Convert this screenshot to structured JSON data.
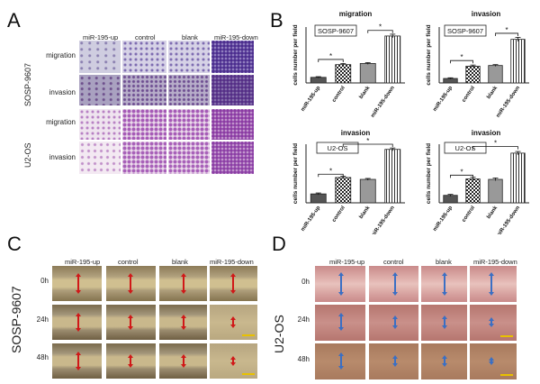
{
  "panels": {
    "a": "A",
    "b": "B",
    "c": "C",
    "d": "D"
  },
  "panel_a": {
    "columns": [
      "miR-195-up",
      "control",
      "blank",
      "miR-195-down"
    ],
    "rows": [
      "migration",
      "invasion",
      "migration",
      "invasion"
    ],
    "cell_lines": [
      "SOSP-9607",
      "U2-OS"
    ]
  },
  "panel_b": {
    "ylabel": "cells number per field",
    "categories": [
      "miR-195-up",
      "control",
      "blank",
      "miR-195-down"
    ],
    "significance": "*"
  },
  "panel_c": {
    "columns": [
      "miR-195-up",
      "control",
      "blank",
      "miR-195-down"
    ],
    "rows": [
      "0h",
      "24h",
      "48h"
    ],
    "cell_line": "SOSP-9607"
  },
  "panel_d": {
    "columns": [
      "miR-195-up",
      "control",
      "blank",
      "miR-195-down"
    ],
    "rows": [
      "0h",
      "24h",
      "48h"
    ],
    "cell_line": "U2-OS"
  },
  "chart_data": [
    {
      "type": "bar",
      "title": "migration",
      "legend": "SOSP-9607",
      "ylabel": "cells number per field",
      "categories": [
        "miR-195-up",
        "control",
        "blank",
        "miR-195-down"
      ],
      "values": [
        25,
        82,
        87,
        210
      ],
      "errors": [
        3,
        5,
        4,
        8
      ],
      "ylim": [
        0,
        250
      ],
      "patterns": [
        "dark",
        "checker",
        "gray",
        "vertical-lines"
      ],
      "yticks": false
    },
    {
      "type": "bar",
      "title": "invasion",
      "legend": "SOSP-9607",
      "ylabel": "cells number per field",
      "categories": [
        "miR-195-up",
        "control",
        "blank",
        "miR-195-down"
      ],
      "values": [
        20,
        75,
        78,
        195
      ],
      "errors": [
        3,
        5,
        4,
        9
      ],
      "ylim": [
        0,
        250
      ],
      "patterns": [
        "dark",
        "checker",
        "gray",
        "vertical-lines"
      ],
      "yticks": false
    },
    {
      "type": "bar",
      "title": "invasion",
      "legend": "U2-OS",
      "ylabel": "cells number per field",
      "categories": [
        "miR-195-up",
        "control",
        "blank",
        "miR-195-down"
      ],
      "values": [
        38,
        108,
        100,
        228
      ],
      "errors": [
        4,
        5,
        4,
        6
      ],
      "ylim": [
        0,
        250
      ],
      "patterns": [
        "dark",
        "checker",
        "gray",
        "vertical-lines"
      ],
      "yticks": false
    },
    {
      "type": "bar",
      "title": "invasion",
      "legend": "U2-OS",
      "ylabel": "cells number per field",
      "categories": [
        "miR-195-up",
        "control",
        "blank",
        "miR-195-down"
      ],
      "values": [
        32,
        102,
        100,
        212
      ],
      "errors": [
        4,
        7,
        6,
        7
      ],
      "ylim": [
        0,
        250
      ],
      "patterns": [
        "dark",
        "checker",
        "gray",
        "vertical-lines"
      ],
      "yticks": false
    }
  ]
}
